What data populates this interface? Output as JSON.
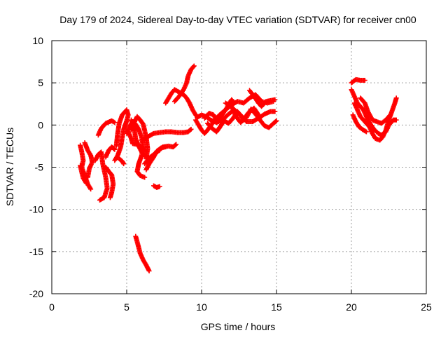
{
  "chart_data": {
    "type": "scatter",
    "title": "Day 179 of 2024, Sidereal Day-to-day VTEC variation (SDTVAR) for receiver cn00",
    "xlabel": "GPS time / hours",
    "ylabel": "SDTVAR / TECUs",
    "xlim": [
      0,
      25
    ],
    "ylim": [
      -20,
      10
    ],
    "xticks": [
      0,
      5,
      10,
      15,
      20,
      25
    ],
    "yticks": [
      -20,
      -15,
      -10,
      -5,
      0,
      5,
      10
    ],
    "grid": true,
    "marker": "+",
    "series": [
      {
        "name": "SDTVAR",
        "color": "#ff0000",
        "tracks": [
          [
            [
              1.9,
              -2.4
            ],
            [
              2.0,
              -3.2
            ],
            [
              2.1,
              -4.2
            ],
            [
              2.0,
              -5.0
            ],
            [
              2.2,
              -6.0
            ],
            [
              2.4,
              -7.0
            ],
            [
              2.6,
              -7.6
            ]
          ],
          [
            [
              2.2,
              -2.1
            ],
            [
              2.4,
              -3.0
            ],
            [
              2.6,
              -3.6
            ],
            [
              2.7,
              -4.4
            ],
            [
              2.5,
              -5.2
            ],
            [
              2.4,
              -6.2
            ]
          ],
          [
            [
              1.9,
              -4.8
            ],
            [
              2.0,
              -5.6
            ],
            [
              2.1,
              -6.3
            ],
            [
              2.3,
              -6.9
            ]
          ],
          [
            [
              3.1,
              -1.2
            ],
            [
              3.3,
              -0.4
            ],
            [
              3.6,
              0.2
            ],
            [
              4.0,
              0.5
            ],
            [
              4.2,
              0.3
            ]
          ],
          [
            [
              2.9,
              -4.2
            ],
            [
              3.1,
              -3.5
            ],
            [
              3.3,
              -3.2
            ],
            [
              3.4,
              -4.6
            ],
            [
              3.6,
              -6.2
            ],
            [
              3.7,
              -7.5
            ],
            [
              3.5,
              -8.6
            ],
            [
              3.2,
              -8.9
            ]
          ],
          [
            [
              3.6,
              -3.8
            ],
            [
              3.8,
              -3.0
            ],
            [
              4.0,
              -2.6
            ],
            [
              4.2,
              -2.9
            ]
          ],
          [
            [
              3.6,
              -5.0
            ],
            [
              3.8,
              -5.5
            ],
            [
              4.0,
              -5.9
            ],
            [
              4.1,
              -7.0
            ],
            [
              4.0,
              -8.0
            ],
            [
              3.9,
              -8.6
            ]
          ],
          [
            [
              4.2,
              -4.2
            ],
            [
              4.4,
              -3.6
            ],
            [
              4.6,
              -2.6
            ],
            [
              4.7,
              -1.5
            ],
            [
              4.8,
              -0.5
            ],
            [
              5.0,
              0.5
            ],
            [
              5.1,
              1.2
            ],
            [
              5.0,
              1.8
            ],
            [
              4.7,
              1.2
            ],
            [
              4.5,
              0.2
            ],
            [
              4.4,
              -1.0
            ],
            [
              4.3,
              -2.5
            ]
          ],
          [
            [
              4.5,
              -4.0
            ],
            [
              4.7,
              -4.3
            ],
            [
              4.8,
              -4.6
            ]
          ],
          [
            [
              5.0,
              -1.0
            ],
            [
              5.2,
              -0.1
            ],
            [
              5.4,
              0.4
            ],
            [
              5.6,
              0.1
            ],
            [
              5.8,
              -0.5
            ],
            [
              6.0,
              -1.5
            ],
            [
              6.1,
              -2.5
            ],
            [
              6.0,
              -3.6
            ],
            [
              5.8,
              -4.6
            ],
            [
              5.7,
              -5.5
            ],
            [
              5.9,
              -6.0
            ],
            [
              6.2,
              -6.2
            ]
          ],
          [
            [
              5.3,
              0.6
            ],
            [
              5.5,
              -0.4
            ],
            [
              5.6,
              -1.6
            ],
            [
              5.8,
              -2.5
            ],
            [
              6.0,
              -3.2
            ],
            [
              6.2,
              -3.6
            ]
          ],
          [
            [
              5.1,
              -0.8
            ],
            [
              5.3,
              -1.6
            ],
            [
              5.4,
              -2.2
            ],
            [
              5.7,
              -2.3
            ],
            [
              6.0,
              -2.6
            ],
            [
              6.3,
              -3.1
            ]
          ],
          [
            [
              5.3,
              -0.6
            ],
            [
              5.5,
              0.3
            ],
            [
              5.7,
              1.0
            ],
            [
              5.9,
              0.6
            ],
            [
              6.1,
              0.1
            ],
            [
              6.3,
              -1.4
            ],
            [
              6.4,
              -2.8
            ],
            [
              6.3,
              -4.0
            ]
          ],
          [
            [
              6.3,
              -5.3
            ],
            [
              6.5,
              -4.6
            ],
            [
              6.8,
              -3.8
            ],
            [
              7.0,
              -3.1
            ],
            [
              7.3,
              -2.7
            ],
            [
              7.6,
              -2.6
            ]
          ],
          [
            [
              6.2,
              -4.6
            ],
            [
              6.5,
              -3.9
            ],
            [
              6.8,
              -3.5
            ],
            [
              7.2,
              -3.0
            ]
          ],
          [
            [
              7.4,
              -2.6
            ],
            [
              7.8,
              -2.5
            ],
            [
              8.1,
              -2.6
            ],
            [
              8.3,
              -2.3
            ]
          ],
          [
            [
              6.0,
              -1.8
            ],
            [
              6.4,
              -1.4
            ],
            [
              6.8,
              -1.0
            ],
            [
              7.2,
              -0.9
            ],
            [
              7.6,
              -0.8
            ],
            [
              8.0,
              -0.8
            ],
            [
              8.4,
              -0.9
            ],
            [
              8.8,
              -0.9
            ],
            [
              9.1,
              -0.8
            ],
            [
              9.3,
              -0.5
            ]
          ],
          [
            [
              6.8,
              -7.2
            ],
            [
              7.0,
              -7.4
            ],
            [
              7.2,
              -7.3
            ]
          ],
          [
            [
              5.6,
              -13.2
            ],
            [
              5.8,
              -14.5
            ],
            [
              5.9,
              -15.2
            ],
            [
              6.1,
              -16.0
            ],
            [
              6.3,
              -16.6
            ],
            [
              6.5,
              -17.3
            ]
          ],
          [
            [
              7.6,
              2.6
            ],
            [
              7.8,
              3.2
            ],
            [
              8.0,
              3.8
            ],
            [
              8.2,
              4.2
            ],
            [
              8.4,
              4.0
            ],
            [
              8.6,
              3.8
            ],
            [
              8.8,
              3.6
            ],
            [
              9.0,
              3.2
            ],
            [
              9.2,
              2.6
            ],
            [
              9.4,
              1.8
            ],
            [
              9.6,
              1.2
            ],
            [
              9.7,
              1.0
            ]
          ],
          [
            [
              8.2,
              2.8
            ],
            [
              8.5,
              3.4
            ],
            [
              8.8,
              4.2
            ],
            [
              9.0,
              5.0
            ],
            [
              9.1,
              5.8
            ],
            [
              9.3,
              6.6
            ],
            [
              9.5,
              7.0
            ]
          ],
          [
            [
              9.6,
              0.6
            ],
            [
              9.8,
              0.0
            ],
            [
              10.0,
              -0.6
            ],
            [
              10.2,
              -1.0
            ],
            [
              10.4,
              -0.6
            ],
            [
              10.6,
              -0.1
            ],
            [
              10.9,
              0.6
            ],
            [
              11.2,
              1.2
            ],
            [
              11.6,
              1.8
            ],
            [
              12.0,
              2.4
            ],
            [
              12.4,
              2.8
            ],
            [
              12.8,
              2.6
            ],
            [
              13.2,
              3.2
            ],
            [
              13.6,
              3.6
            ],
            [
              14.0,
              2.8
            ],
            [
              14.4,
              2.6
            ],
            [
              14.8,
              2.8
            ]
          ],
          [
            [
              9.7,
              0.9
            ],
            [
              10.0,
              1.2
            ],
            [
              10.3,
              1.0
            ],
            [
              10.6,
              0.6
            ],
            [
              11.0,
              0.3
            ],
            [
              11.4,
              0.6
            ],
            [
              11.8,
              1.3
            ],
            [
              12.2,
              1.8
            ],
            [
              12.6,
              1.2
            ],
            [
              13.0,
              0.4
            ],
            [
              13.4,
              0.4
            ],
            [
              13.8,
              0.8
            ],
            [
              14.2,
              1.3
            ],
            [
              14.6,
              1.6
            ],
            [
              14.9,
              1.6
            ]
          ],
          [
            [
              10.4,
              0.2
            ],
            [
              10.7,
              -0.4
            ],
            [
              11.0,
              -0.8
            ],
            [
              11.2,
              -0.3
            ],
            [
              11.5,
              0.5
            ],
            [
              11.8,
              0.2
            ],
            [
              12.1,
              0.8
            ],
            [
              12.4,
              1.6
            ],
            [
              12.8,
              0.6
            ],
            [
              13.1,
              1.4
            ],
            [
              13.5,
              2.0
            ],
            [
              13.8,
              1.2
            ]
          ],
          [
            [
              11.6,
              2.6
            ],
            [
              12.0,
              2.2
            ],
            [
              12.3,
              1.0
            ],
            [
              12.6,
              0.3
            ],
            [
              13.0,
              0.9
            ],
            [
              13.3,
              1.9
            ],
            [
              13.6,
              1.3
            ],
            [
              13.9,
              0.6
            ],
            [
              14.2,
              -0.1
            ],
            [
              14.5,
              -0.3
            ],
            [
              14.8,
              0.2
            ],
            [
              15.0,
              0.5
            ]
          ],
          [
            [
              13.2,
              4.1
            ],
            [
              13.5,
              3.4
            ],
            [
              13.8,
              2.6
            ],
            [
              14.0,
              2.2
            ],
            [
              14.3,
              2.8
            ],
            [
              14.6,
              2.9
            ],
            [
              14.9,
              3.0
            ]
          ],
          [
            [
              10.2,
              0.8
            ],
            [
              10.5,
              1.4
            ],
            [
              10.8,
              1.2
            ],
            [
              11.0,
              0.6
            ],
            [
              11.3,
              1.0
            ],
            [
              11.7,
              2.1
            ],
            [
              12.0,
              3.0
            ],
            [
              12.2,
              2.6
            ]
          ],
          [
            [
              20.0,
              5.0
            ],
            [
              20.3,
              5.4
            ],
            [
              20.6,
              5.3
            ],
            [
              20.9,
              5.3
            ]
          ],
          [
            [
              20.0,
              4.2
            ],
            [
              20.2,
              3.4
            ],
            [
              20.4,
              2.6
            ],
            [
              20.6,
              2.2
            ],
            [
              20.8,
              1.8
            ],
            [
              21.0,
              1.0
            ],
            [
              21.2,
              0.3
            ],
            [
              21.5,
              -0.5
            ],
            [
              21.8,
              -1.0
            ],
            [
              22.0,
              -1.2
            ],
            [
              22.3,
              -0.8
            ],
            [
              22.5,
              0.0
            ],
            [
              22.8,
              0.6
            ],
            [
              23.0,
              0.6
            ]
          ],
          [
            [
              20.2,
              2.6
            ],
            [
              20.4,
              1.8
            ],
            [
              20.6,
              1.0
            ],
            [
              20.9,
              0.4
            ],
            [
              21.2,
              -0.2
            ],
            [
              21.4,
              -1.0
            ],
            [
              21.6,
              -1.6
            ],
            [
              21.9,
              -1.8
            ],
            [
              22.1,
              -1.4
            ],
            [
              22.3,
              -0.6
            ],
            [
              22.5,
              0.6
            ],
            [
              22.7,
              1.6
            ],
            [
              22.9,
              2.6
            ],
            [
              23.0,
              3.2
            ]
          ],
          [
            [
              20.1,
              1.2
            ],
            [
              20.3,
              0.4
            ],
            [
              20.5,
              -0.2
            ],
            [
              20.8,
              -0.6
            ],
            [
              21.0,
              -0.8
            ]
          ],
          [
            [
              20.6,
              3.2
            ],
            [
              20.9,
              2.6
            ],
            [
              21.1,
              1.6
            ],
            [
              21.4,
              0.6
            ],
            [
              21.7,
              0.4
            ],
            [
              22.0,
              0.2
            ],
            [
              22.3,
              0.6
            ],
            [
              22.6,
              1.2
            ]
          ]
        ]
      }
    ]
  }
}
